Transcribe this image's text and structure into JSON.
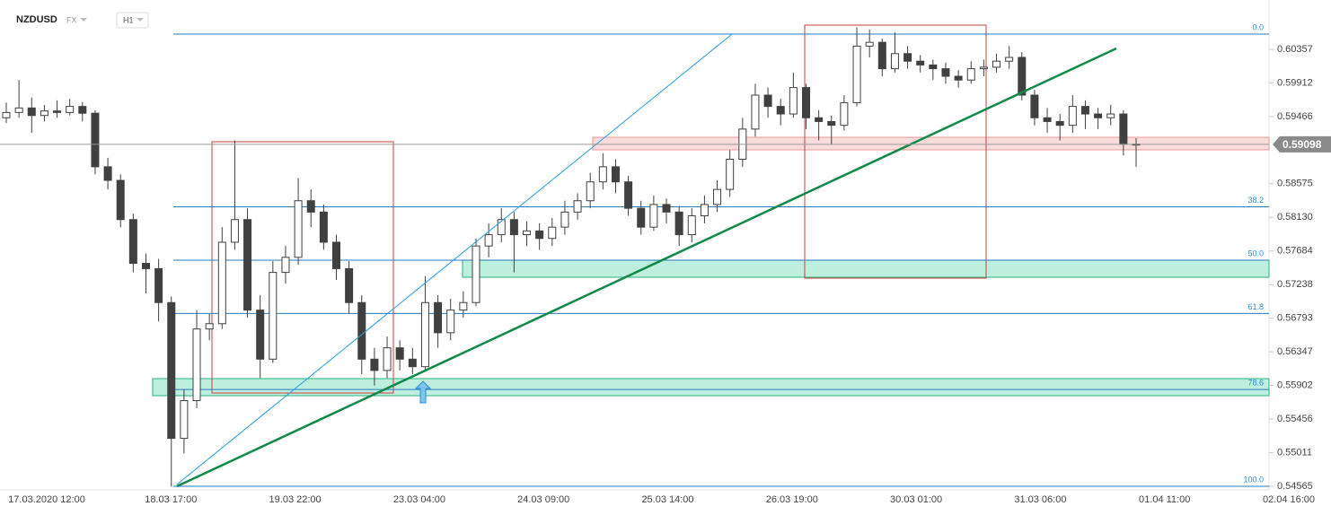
{
  "header": {
    "symbol": "NZDUSD",
    "market": "FX",
    "interval": "H1"
  },
  "chart_data": {
    "type": "candlestick",
    "x_labels": [
      "17.03.2020 12:00",
      "18.03 17:00",
      "19.03 22:00",
      "23.03 04:00",
      "24.03 09:00",
      "25.03 14:00",
      "26.03 19:00",
      "30.03 01:00",
      "31.03 06:00",
      "01.04 11:00",
      "02.04 16:00"
    ],
    "open": [
      0.5945,
      0.5952,
      0.5958,
      0.5948,
      0.5954,
      0.5952,
      0.596,
      0.5951,
      0.588,
      0.5862,
      0.581,
      0.5752,
      0.5745,
      0.57,
      0.552,
      0.557,
      0.5665,
      0.5672,
      0.578,
      0.581,
      0.569,
      0.5625,
      0.574,
      0.576,
      0.5835,
      0.582,
      0.578,
      0.5745,
      0.57,
      0.5625,
      0.561,
      0.564,
      0.5625,
      0.5615,
      0.57,
      0.566,
      0.569,
      0.57,
      0.5775,
      0.579,
      0.581,
      0.579,
      0.5795,
      0.5785,
      0.58,
      0.582,
      0.5835,
      0.586,
      0.588,
      0.586,
      0.5825,
      0.58,
      0.583,
      0.582,
      0.579,
      0.5815,
      0.583,
      0.585,
      0.589,
      0.593,
      0.5975,
      0.596,
      0.595,
      0.5985,
      0.5945,
      0.594,
      0.5935,
      0.5965,
      0.604,
      0.6045,
      0.601,
      0.603,
      0.602,
      0.6015,
      0.601,
      0.6,
      0.5995,
      0.601,
      0.6012,
      0.602,
      0.6025,
      0.5975,
      0.5945,
      0.594,
      0.5935,
      0.596,
      0.595,
      0.5945,
      0.595,
      0.591
    ],
    "high": [
      0.5965,
      0.5995,
      0.5972,
      0.5962,
      0.5968,
      0.597,
      0.5966,
      0.5955,
      0.5892,
      0.587,
      0.5818,
      0.5765,
      0.5758,
      0.5708,
      0.5585,
      0.569,
      0.5685,
      0.58,
      0.5915,
      0.5825,
      0.571,
      0.5755,
      0.5775,
      0.5865,
      0.585,
      0.583,
      0.579,
      0.5755,
      0.571,
      0.564,
      0.5655,
      0.565,
      0.564,
      0.5735,
      0.571,
      0.5705,
      0.5715,
      0.5785,
      0.5805,
      0.5825,
      0.582,
      0.5808,
      0.5805,
      0.5812,
      0.5835,
      0.5845,
      0.5872,
      0.5898,
      0.589,
      0.5868,
      0.5835,
      0.5842,
      0.5838,
      0.5828,
      0.5825,
      0.5842,
      0.5862,
      0.5902,
      0.5945,
      0.599,
      0.5985,
      0.597,
      0.6005,
      0.599,
      0.5955,
      0.5948,
      0.5975,
      0.6065,
      0.6062,
      0.605,
      0.6058,
      0.604,
      0.6028,
      0.6022,
      0.6018,
      0.6008,
      0.602,
      0.6022,
      0.603,
      0.604,
      0.6032,
      0.5982,
      0.5958,
      0.595,
      0.5975,
      0.5968,
      0.5958,
      0.5962,
      0.5955,
      0.5918
    ],
    "low": [
      0.5938,
      0.5945,
      0.5925,
      0.594,
      0.5945,
      0.5948,
      0.594,
      0.587,
      0.585,
      0.58,
      0.574,
      0.5712,
      0.5675,
      0.5456,
      0.55,
      0.556,
      0.565,
      0.5665,
      0.577,
      0.568,
      0.56,
      0.562,
      0.5725,
      0.575,
      0.58,
      0.577,
      0.573,
      0.5685,
      0.5605,
      0.559,
      0.56,
      0.561,
      0.5605,
      0.561,
      0.564,
      0.565,
      0.568,
      0.5695,
      0.576,
      0.578,
      0.574,
      0.5775,
      0.577,
      0.5775,
      0.579,
      0.581,
      0.5825,
      0.585,
      0.5845,
      0.5815,
      0.579,
      0.5795,
      0.5805,
      0.5775,
      0.578,
      0.5805,
      0.582,
      0.584,
      0.588,
      0.592,
      0.5945,
      0.5935,
      0.5945,
      0.593,
      0.5915,
      0.591,
      0.5928,
      0.596,
      0.6025,
      0.6,
      0.6005,
      0.601,
      0.6005,
      0.5995,
      0.599,
      0.5985,
      0.599,
      0.6,
      0.6005,
      0.601,
      0.5968,
      0.5935,
      0.5925,
      0.5915,
      0.5925,
      0.593,
      0.593,
      0.5935,
      0.5895,
      0.588
    ],
    "close": [
      0.5952,
      0.5958,
      0.5948,
      0.5954,
      0.5952,
      0.596,
      0.5951,
      0.588,
      0.5862,
      0.581,
      0.5752,
      0.5745,
      0.57,
      0.552,
      0.557,
      0.5665,
      0.5672,
      0.578,
      0.581,
      0.569,
      0.5625,
      0.574,
      0.576,
      0.5835,
      0.582,
      0.578,
      0.5745,
      0.57,
      0.5625,
      0.561,
      0.564,
      0.5625,
      0.5615,
      0.57,
      0.566,
      0.569,
      0.57,
      0.5775,
      0.579,
      0.581,
      0.579,
      0.5795,
      0.5785,
      0.58,
      0.582,
      0.5835,
      0.586,
      0.588,
      0.586,
      0.5825,
      0.58,
      0.583,
      0.582,
      0.579,
      0.5815,
      0.583,
      0.585,
      0.589,
      0.593,
      0.5975,
      0.596,
      0.595,
      0.5985,
      0.5945,
      0.594,
      0.5935,
      0.5965,
      0.604,
      0.6045,
      0.601,
      0.603,
      0.602,
      0.6015,
      0.601,
      0.6,
      0.5995,
      0.601,
      0.6012,
      0.602,
      0.6025,
      0.5975,
      0.5945,
      0.594,
      0.5935,
      0.596,
      0.595,
      0.5945,
      0.595,
      0.591,
      0.59098
    ],
    "up_color": "#ffffff",
    "down_color": "#404040",
    "outline_color": "#404040",
    "ylim": [
      0.54517,
      0.61011
    ],
    "yticks": [
      0.60357,
      0.59912,
      0.59466,
      0.58575,
      {
        "value": 0.5813,
        "label": "0.58130"
      },
      0.57684,
      0.57238,
      0.56793,
      0.56347,
      0.55902,
      0.55456,
      0.55011,
      0.54565
    ],
    "last_price": 0.59098,
    "fib_levels": [
      {
        "label": "0.0",
        "price": 0.60559
      },
      {
        "label": "38.2",
        "price": 0.58269
      },
      {
        "label": "50.0",
        "price": 0.57562
      },
      {
        "label": "61.8",
        "price": 0.56855
      },
      {
        "label": "78.6",
        "price": 0.55848
      },
      {
        "label": "100.0",
        "price": 0.54565
      }
    ],
    "fib_color": "#2a7bbf"
  }
}
